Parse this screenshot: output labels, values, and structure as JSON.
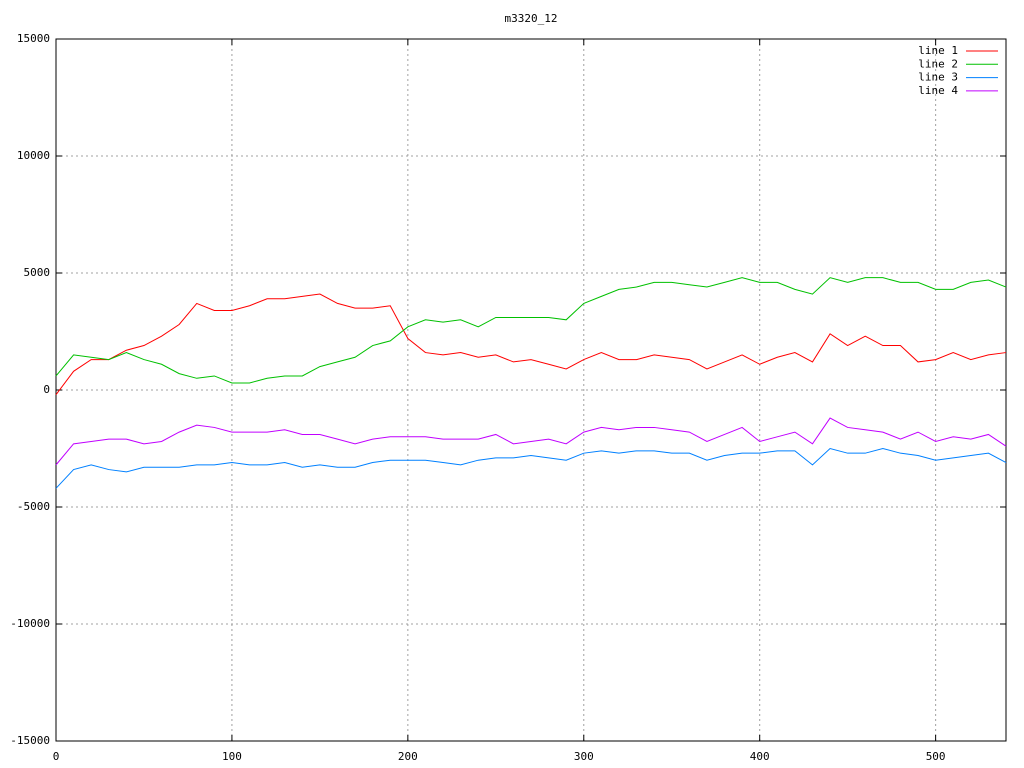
{
  "chart_data": {
    "type": "line",
    "title": "m3320_12",
    "x": [
      0,
      10,
      20,
      30,
      40,
      50,
      60,
      70,
      80,
      90,
      100,
      110,
      120,
      130,
      140,
      150,
      160,
      170,
      180,
      190,
      200,
      210,
      220,
      230,
      240,
      250,
      260,
      270,
      280,
      290,
      300,
      310,
      320,
      330,
      340,
      350,
      360,
      370,
      380,
      390,
      400,
      410,
      420,
      430,
      440,
      450,
      460,
      470,
      480,
      490,
      500,
      510,
      520,
      530,
      540
    ],
    "series": [
      {
        "name": "line 1",
        "color": "#ff0000",
        "values": [
          -200,
          800,
          1300,
          1300,
          1700,
          1900,
          2300,
          2800,
          3700,
          3400,
          3400,
          3600,
          3900,
          3900,
          4000,
          4100,
          3700,
          3500,
          3500,
          3600,
          2200,
          1600,
          1500,
          1600,
          1400,
          1500,
          1200,
          1300,
          1100,
          900,
          1300,
          1600,
          1300,
          1300,
          1500,
          1400,
          1300,
          900,
          1200,
          1500,
          1100,
          1400,
          1600,
          1200,
          2400,
          1900,
          2300,
          1900,
          1900,
          1200,
          1300,
          1600,
          1300,
          1500,
          1600
        ]
      },
      {
        "name": "line 2",
        "color": "#00c000",
        "values": [
          600,
          1500,
          1400,
          1300,
          1600,
          1300,
          1100,
          700,
          500,
          600,
          300,
          300,
          500,
          600,
          600,
          1000,
          1200,
          1400,
          1900,
          2100,
          2700,
          3000,
          2900,
          3000,
          2700,
          3100,
          3100,
          3100,
          3100,
          3000,
          3700,
          4000,
          4300,
          4400,
          4600,
          4600,
          4500,
          4400,
          4600,
          4800,
          4600,
          4600,
          4300,
          4100,
          4800,
          4600,
          4800,
          4800,
          4600,
          4600,
          4300,
          4300,
          4600,
          4700,
          4400
        ]
      },
      {
        "name": "line 3",
        "color": "#0080ff",
        "values": [
          -4200,
          -3400,
          -3200,
          -3400,
          -3500,
          -3300,
          -3300,
          -3300,
          -3200,
          -3200,
          -3100,
          -3200,
          -3200,
          -3100,
          -3300,
          -3200,
          -3300,
          -3300,
          -3100,
          -3000,
          -3000,
          -3000,
          -3100,
          -3200,
          -3000,
          -2900,
          -2900,
          -2800,
          -2900,
          -3000,
          -2700,
          -2600,
          -2700,
          -2600,
          -2600,
          -2700,
          -2700,
          -3000,
          -2800,
          -2700,
          -2700,
          -2600,
          -2600,
          -3200,
          -2500,
          -2700,
          -2700,
          -2500,
          -2700,
          -2800,
          -3000,
          -2900,
          -2800,
          -2700,
          -3100
        ]
      },
      {
        "name": "line 4",
        "color": "#c000ff",
        "values": [
          -3200,
          -2300,
          -2200,
          -2100,
          -2100,
          -2300,
          -2200,
          -1800,
          -1500,
          -1600,
          -1800,
          -1800,
          -1800,
          -1700,
          -1900,
          -1900,
          -2100,
          -2300,
          -2100,
          -2000,
          -2000,
          -2000,
          -2100,
          -2100,
          -2100,
          -1900,
          -2300,
          -2200,
          -2100,
          -2300,
          -1800,
          -1600,
          -1700,
          -1600,
          -1600,
          -1700,
          -1800,
          -2200,
          -1900,
          -1600,
          -2200,
          -2000,
          -1800,
          -2300,
          -1200,
          -1600,
          -1700,
          -1800,
          -2100,
          -1800,
          -2200,
          -2000,
          -2100,
          -1900,
          -2400
        ]
      }
    ],
    "xlim": [
      0,
      540
    ],
    "xticks": [
      0,
      100,
      200,
      300,
      400,
      500
    ],
    "ylim": [
      -15000,
      15000
    ],
    "yticks": [
      -15000,
      -10000,
      -5000,
      0,
      5000,
      10000,
      15000
    ],
    "grid": true,
    "legend": "top-right"
  }
}
